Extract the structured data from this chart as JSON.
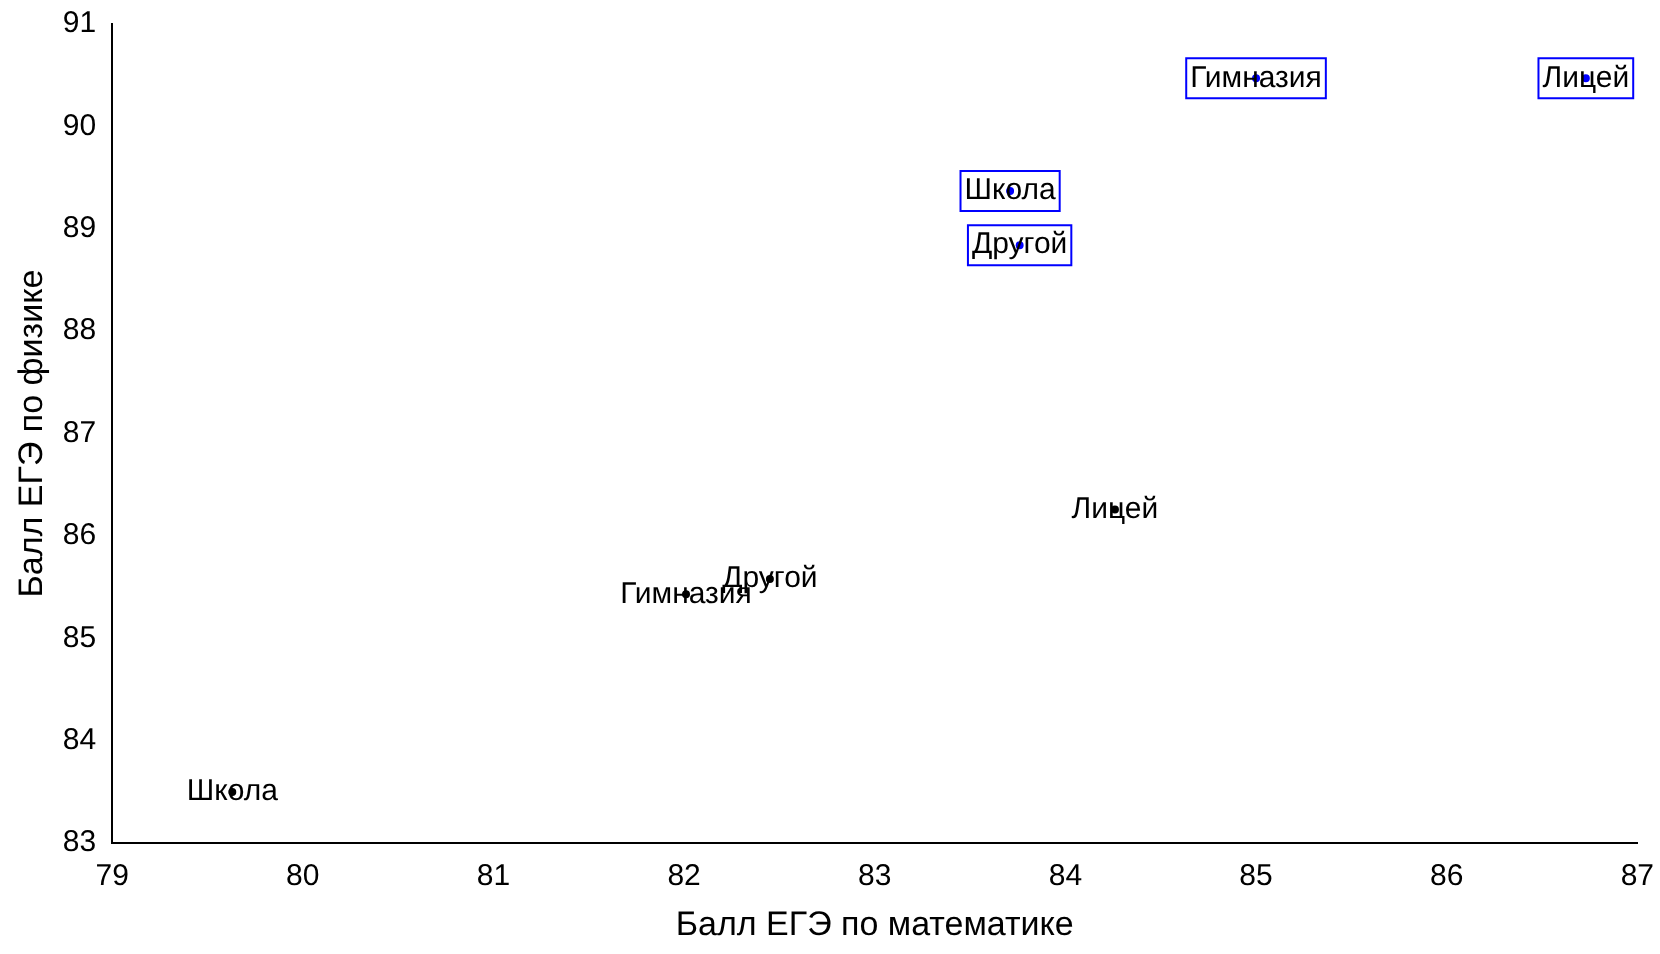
{
  "chart_data": {
    "type": "scatter",
    "xlabel": "Балл ЕГЭ по математике",
    "ylabel": "Балл ЕГЭ по физике",
    "xlim": [
      79,
      87
    ],
    "xticks": [
      79,
      80,
      81,
      82,
      83,
      84,
      85,
      86,
      87
    ],
    "ylim": [
      83,
      91
    ],
    "yticks": [
      83,
      84,
      85,
      86,
      87,
      88,
      89,
      90,
      91
    ],
    "grid": false,
    "series": [
      {
        "x": [
          79.63,
          82.01,
          82.45,
          84.26
        ],
        "values": [
          83.5,
          85.43,
          85.58,
          86.26
        ]
      },
      {
        "color": "#0000ff",
        "x": [
          85.0,
          86.73,
          83.71,
          83.76
        ],
        "values": [
          90.47,
          90.47,
          89.37,
          88.84
        ]
      }
    ],
    "annotations": [
      {
        "text": "Школа",
        "x": 79.63,
        "y": 83.5
      },
      {
        "text": "Гимназия",
        "x": 82.01,
        "y": 85.43
      },
      {
        "text": "Другой",
        "x": 82.45,
        "y": 85.58
      },
      {
        "text": "Лицей",
        "x": 84.26,
        "y": 86.26
      },
      {
        "text": "Гимназия",
        "x": 85.0,
        "y": 90.47
      },
      {
        "text": "Лицей",
        "x": 86.73,
        "y": 90.47
      },
      {
        "text": "Школа",
        "x": 83.71,
        "y": 89.37
      },
      {
        "text": "Другой",
        "x": 83.76,
        "y": 88.84
      }
    ]
  }
}
